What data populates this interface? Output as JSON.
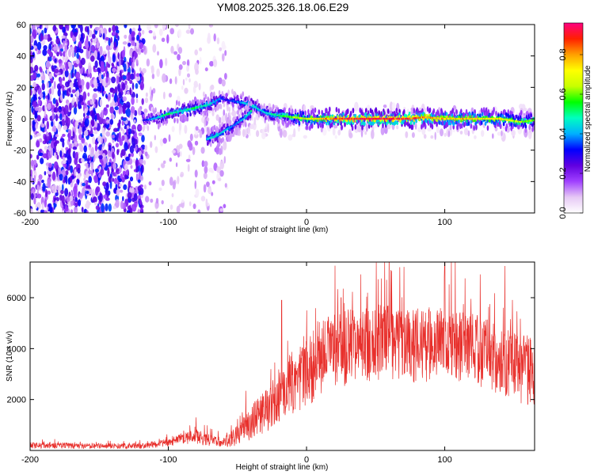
{
  "title": "YM08.2025.326.18.06.E29",
  "chart_data": [
    {
      "type": "heatmap",
      "title": "YM08.2025.326.18.06.E29",
      "xlabel": "Height of straight line (km)",
      "ylabel": "Frequency (Hz)",
      "xlim": [
        -200,
        165
      ],
      "ylim": [
        -60,
        60
      ],
      "xticks": [
        -200,
        -100,
        0,
        100
      ],
      "yticks": [
        -60,
        -40,
        -20,
        0,
        20,
        40,
        60
      ],
      "xtick_labels": [
        "-200",
        "-100",
        "0",
        "100"
      ],
      "ytick_labels": [
        "-60",
        "-40",
        "-20",
        "0",
        "20",
        "40",
        "60"
      ],
      "colorbar": {
        "label": "Normalized spectral amplitude",
        "range": [
          0,
          0.96
        ],
        "ticks": [
          0.0,
          0.2,
          0.4,
          0.6,
          0.8
        ],
        "tick_labels": [
          "0.0",
          "0.2",
          "0.4",
          "0.6",
          "0.8"
        ],
        "colormap": [
          "#ffffff",
          "#e6c8f5",
          "#a040ff",
          "#6000e0",
          "#0000ff",
          "#00b0ff",
          "#00ffc0",
          "#00ff00",
          "#c8ff00",
          "#ffff00",
          "#ffa000",
          "#ff2000",
          "#ff0080"
        ]
      },
      "noise_regions": [
        {
          "x": [
            -200,
            -118
          ],
          "y": [
            -60,
            60
          ],
          "density": "high",
          "amplitude": [
            0.15,
            0.35
          ]
        },
        {
          "x": [
            -118,
            -57
          ],
          "y": [
            -60,
            60
          ],
          "density": "low",
          "amplitude": [
            0.02,
            0.15
          ]
        },
        {
          "x": [
            -57,
            165
          ],
          "y": [
            -12,
            8
          ],
          "density": "low",
          "amplitude": [
            0.02,
            0.12
          ]
        }
      ],
      "ridge": [
        {
          "x": -118,
          "y": -1,
          "amp": 0.3
        },
        {
          "x": -110,
          "y": 0,
          "amp": 0.45
        },
        {
          "x": -100,
          "y": 3,
          "amp": 0.55
        },
        {
          "x": -90,
          "y": 5,
          "amp": 0.5
        },
        {
          "x": -80,
          "y": 7,
          "amp": 0.55
        },
        {
          "x": -70,
          "y": 9,
          "amp": 0.5
        },
        {
          "x": -62,
          "y": 13,
          "amp": 0.4
        },
        {
          "x": -58,
          "y": 12,
          "amp": 0.3
        },
        {
          "x": -45,
          "y": 10,
          "amp": 0.45
        },
        {
          "x": -38,
          "y": 8,
          "amp": 0.5
        },
        {
          "x": -30,
          "y": 4,
          "amp": 0.45
        },
        {
          "x": -20,
          "y": 2,
          "amp": 0.55
        },
        {
          "x": -10,
          "y": 1,
          "amp": 0.65
        },
        {
          "x": 0,
          "y": 0,
          "amp": 0.72
        },
        {
          "x": 10,
          "y": 0,
          "amp": 0.78
        },
        {
          "x": 20,
          "y": 0,
          "amp": 0.9
        },
        {
          "x": 40,
          "y": 0,
          "amp": 0.95
        },
        {
          "x": 60,
          "y": 0,
          "amp": 0.95
        },
        {
          "x": 75,
          "y": 0,
          "amp": 0.92
        },
        {
          "x": 85,
          "y": 1,
          "amp": 0.85
        },
        {
          "x": 100,
          "y": 0,
          "amp": 0.8
        },
        {
          "x": 120,
          "y": 0,
          "amp": 0.78
        },
        {
          "x": 140,
          "y": 0,
          "amp": 0.75
        },
        {
          "x": 155,
          "y": -2,
          "amp": 0.65
        },
        {
          "x": 165,
          "y": -1,
          "amp": 0.6
        }
      ],
      "lower_branch": [
        {
          "x": -72,
          "y": -13,
          "amp": 0.45
        },
        {
          "x": -65,
          "y": -11,
          "amp": 0.5
        },
        {
          "x": -58,
          "y": -7,
          "amp": 0.45
        },
        {
          "x": -52,
          "y": -4,
          "amp": 0.4
        },
        {
          "x": -45,
          "y": 0,
          "amp": 0.45
        },
        {
          "x": -40,
          "y": 5,
          "amp": 0.5
        }
      ]
    },
    {
      "type": "line",
      "xlabel": "Height of straight line (km)",
      "ylabel": "SNR (10 * v/v)",
      "xlim": [
        -200,
        165
      ],
      "ylim": [
        0,
        7400
      ],
      "xticks": [
        -200,
        -100,
        0,
        100
      ],
      "yticks": [
        2000,
        4000,
        6000
      ],
      "xtick_labels": [
        "-200",
        "-100",
        "0",
        "100"
      ],
      "ytick_labels": [
        "2000",
        "4000",
        "6000"
      ],
      "color": "#e8302c",
      "envelope": {
        "x": [
          -200,
          -160,
          -120,
          -100,
          -90,
          -80,
          -70,
          -60,
          -50,
          -40,
          -30,
          -20,
          -10,
          0,
          10,
          20,
          40,
          60,
          80,
          100,
          120,
          140,
          165
        ],
        "mean": [
          200,
          180,
          180,
          300,
          450,
          550,
          400,
          300,
          600,
          1100,
          1600,
          2100,
          2700,
          3100,
          3600,
          3900,
          4200,
          4300,
          4100,
          4200,
          4000,
          3600,
          3000
        ],
        "spread": [
          120,
          110,
          110,
          160,
          220,
          300,
          220,
          200,
          400,
          700,
          900,
          1100,
          1300,
          1400,
          1500,
          1500,
          1500,
          1500,
          1500,
          1400,
          1400,
          1400,
          1400
        ]
      },
      "peaks": [
        {
          "x": -80,
          "y": 1300
        },
        {
          "x": -18,
          "y": 5900
        },
        {
          "x": 25,
          "y": 6000
        },
        {
          "x": 58,
          "y": 6700
        },
        {
          "x": 100,
          "y": 7400
        }
      ]
    }
  ]
}
